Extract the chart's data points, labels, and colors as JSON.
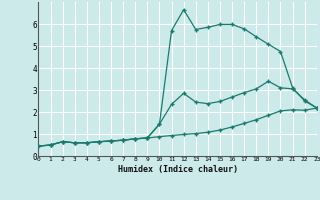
{
  "xlabel": "Humidex (Indice chaleur)",
  "ylabel": "",
  "background_color": "#cceaea",
  "grid_color": "#ffffff",
  "line_color": "#1a7a6e",
  "x_values": [
    0,
    1,
    2,
    3,
    4,
    5,
    6,
    7,
    8,
    9,
    10,
    11,
    12,
    13,
    14,
    15,
    16,
    17,
    18,
    19,
    20,
    21,
    22,
    23
  ],
  "curve1": [
    0.45,
    0.5,
    0.65,
    0.6,
    0.6,
    0.65,
    0.68,
    0.72,
    0.78,
    0.82,
    0.88,
    0.93,
    0.98,
    1.02,
    1.08,
    1.18,
    1.32,
    1.48,
    1.65,
    1.85,
    2.05,
    2.1,
    2.08,
    2.18
  ],
  "curve2": [
    0.45,
    0.5,
    0.65,
    0.6,
    0.6,
    0.65,
    0.68,
    0.72,
    0.78,
    0.82,
    1.45,
    2.35,
    2.85,
    2.45,
    2.38,
    2.48,
    2.68,
    2.88,
    3.05,
    3.4,
    3.1,
    3.05,
    2.55,
    2.18
  ],
  "curve3": [
    0.45,
    0.5,
    0.65,
    0.6,
    0.6,
    0.65,
    0.68,
    0.72,
    0.78,
    0.82,
    1.45,
    5.7,
    6.65,
    5.75,
    5.85,
    5.98,
    5.98,
    5.78,
    5.42,
    5.08,
    4.75,
    3.1,
    2.5,
    2.18
  ],
  "ylim": [
    0,
    7
  ],
  "xlim": [
    0,
    23
  ],
  "yticks": [
    0,
    1,
    2,
    3,
    4,
    5,
    6
  ],
  "xticks": [
    0,
    1,
    2,
    3,
    4,
    5,
    6,
    7,
    8,
    9,
    10,
    11,
    12,
    13,
    14,
    15,
    16,
    17,
    18,
    19,
    20,
    21,
    22,
    23
  ]
}
